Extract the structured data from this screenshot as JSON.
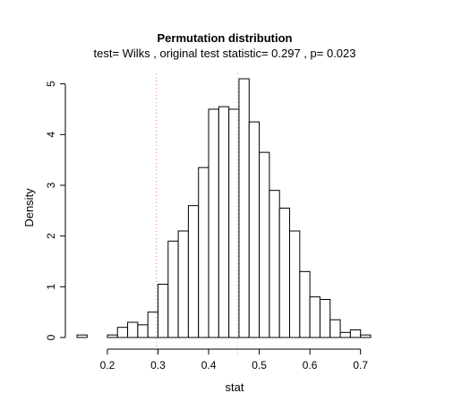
{
  "chart_data": {
    "type": "histogram",
    "title": "Permutation distribution",
    "subtitle": "test= Wilks , original test statistic= 0.297 , p= 0.023",
    "xlabel": "stat",
    "ylabel": "Density",
    "xlim": [
      0.14,
      0.72
    ],
    "ylim": [
      0,
      5.1
    ],
    "x_ticks": [
      0.2,
      0.3,
      0.4,
      0.5,
      0.6,
      0.7
    ],
    "y_ticks": [
      0,
      1,
      2,
      3,
      4,
      5
    ],
    "bin_width": 0.02,
    "bins": [
      {
        "x0": 0.14,
        "x1": 0.16,
        "density": 0.05
      },
      {
        "x0": 0.16,
        "x1": 0.18,
        "density": 0.0
      },
      {
        "x0": 0.18,
        "x1": 0.2,
        "density": 0.0
      },
      {
        "x0": 0.2,
        "x1": 0.22,
        "density": 0.05
      },
      {
        "x0": 0.22,
        "x1": 0.24,
        "density": 0.2
      },
      {
        "x0": 0.24,
        "x1": 0.26,
        "density": 0.3
      },
      {
        "x0": 0.26,
        "x1": 0.28,
        "density": 0.25
      },
      {
        "x0": 0.28,
        "x1": 0.3,
        "density": 0.5
      },
      {
        "x0": 0.3,
        "x1": 0.32,
        "density": 1.05
      },
      {
        "x0": 0.32,
        "x1": 0.34,
        "density": 1.9
      },
      {
        "x0": 0.34,
        "x1": 0.36,
        "density": 2.1
      },
      {
        "x0": 0.36,
        "x1": 0.38,
        "density": 2.6
      },
      {
        "x0": 0.38,
        "x1": 0.4,
        "density": 3.35
      },
      {
        "x0": 0.4,
        "x1": 0.42,
        "density": 4.5
      },
      {
        "x0": 0.42,
        "x1": 0.44,
        "density": 4.55
      },
      {
        "x0": 0.44,
        "x1": 0.46,
        "density": 4.5
      },
      {
        "x0": 0.46,
        "x1": 0.48,
        "density": 5.1
      },
      {
        "x0": 0.48,
        "x1": 0.5,
        "density": 4.25
      },
      {
        "x0": 0.5,
        "x1": 0.52,
        "density": 3.65
      },
      {
        "x0": 0.52,
        "x1": 0.54,
        "density": 2.9
      },
      {
        "x0": 0.54,
        "x1": 0.56,
        "density": 2.55
      },
      {
        "x0": 0.56,
        "x1": 0.58,
        "density": 2.1
      },
      {
        "x0": 0.58,
        "x1": 0.6,
        "density": 1.3
      },
      {
        "x0": 0.6,
        "x1": 0.62,
        "density": 0.8
      },
      {
        "x0": 0.62,
        "x1": 0.64,
        "density": 0.75
      },
      {
        "x0": 0.64,
        "x1": 0.66,
        "density": 0.35
      },
      {
        "x0": 0.66,
        "x1": 0.68,
        "density": 0.1
      },
      {
        "x0": 0.68,
        "x1": 0.7,
        "density": 0.15
      },
      {
        "x0": 0.7,
        "x1": 0.72,
        "density": 0.05
      }
    ],
    "reference_lines": [
      {
        "x": 0.297,
        "color": "#ff6b8a",
        "style": "dotted"
      },
      {
        "x": 0.457,
        "color": "#aaaaaa",
        "style": "dotted"
      }
    ],
    "grid": false,
    "legend": "none"
  }
}
